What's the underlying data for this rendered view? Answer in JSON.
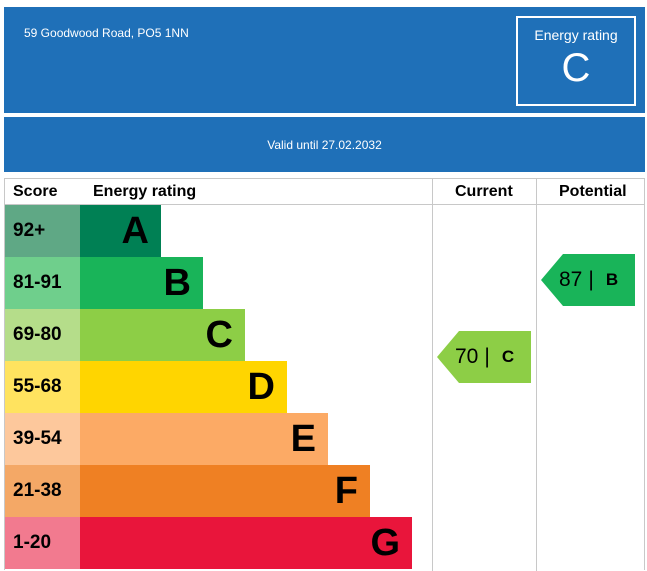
{
  "header": {
    "address": "59 Goodwood Road, PO5 1NN",
    "energy_rating_label": "Energy rating",
    "energy_rating_value": "C",
    "valid_until": "Valid until 27.02.2032"
  },
  "table": {
    "columns": [
      "Score",
      "Energy rating",
      "Current",
      "Potential"
    ],
    "bands": [
      {
        "score": "92+",
        "letter": "A",
        "color": "#008054",
        "score_bg": "#5fa885"
      },
      {
        "score": "81-91",
        "letter": "B",
        "color": "#19b459",
        "score_bg": "#6fcf8c"
      },
      {
        "score": "69-80",
        "letter": "C",
        "color": "#8dce46",
        "score_bg": "#b5dd8a"
      },
      {
        "score": "55-68",
        "letter": "D",
        "color": "#ffd500",
        "score_bg": "#ffe35f"
      },
      {
        "score": "39-54",
        "letter": "E",
        "color": "#fcaa65",
        "score_bg": "#fdc89c"
      },
      {
        "score": "21-38",
        "letter": "F",
        "color": "#ef8023",
        "score_bg": "#f4a866"
      },
      {
        "score": "1-20",
        "letter": "G",
        "color": "#e9153b",
        "score_bg": "#f27a8f"
      }
    ],
    "current": {
      "score": "70",
      "separator": "|",
      "letter": "C",
      "color": "#8dce46"
    },
    "potential": {
      "score": "87",
      "separator": "|",
      "letter": "B",
      "color": "#19b459"
    }
  }
}
